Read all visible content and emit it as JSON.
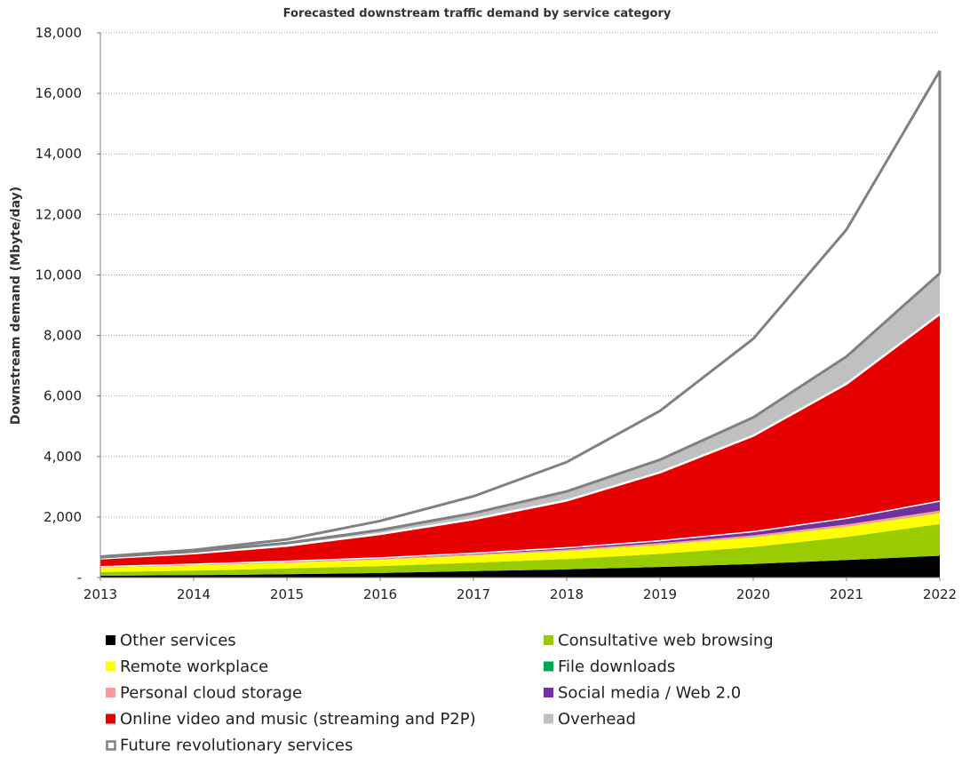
{
  "chart_data": {
    "type": "area",
    "stacked": true,
    "title": "Forecasted downstream traffic demand by service category",
    "xlabel": "",
    "ylabel": "Downstream demand (Mbyte/day)",
    "ylim": [
      0,
      18000
    ],
    "y_ticks": [
      0,
      2000,
      4000,
      6000,
      8000,
      10000,
      12000,
      14000,
      16000,
      18000
    ],
    "y_tick_labels": [
      "-",
      "2,000",
      "4,000",
      "6,000",
      "8,000",
      "10,000",
      "12,000",
      "14,000",
      "16,000",
      "18,000"
    ],
    "x": [
      "2013",
      "2014",
      "2015",
      "2016",
      "2017",
      "2018",
      "2019",
      "2020",
      "2021",
      "2022"
    ],
    "grid": "horizontal",
    "legend_position": "bottom",
    "series": [
      {
        "name": "Other services",
        "color": "#000000",
        "values": [
          60,
          80,
          110,
          150,
          210,
          270,
          350,
          450,
          580,
          720
        ]
      },
      {
        "name": "Consultative web browsing",
        "color": "#99cc00",
        "values": [
          120,
          150,
          190,
          230,
          280,
          340,
          430,
          560,
          760,
          1050
        ]
      },
      {
        "name": "Remote workplace",
        "color": "#ffff00",
        "values": [
          150,
          170,
          190,
          210,
          240,
          270,
          300,
          320,
          340,
          360
        ]
      },
      {
        "name": "File downloads",
        "color": "#00a651",
        "values": [
          5,
          5,
          5,
          5,
          5,
          5,
          5,
          5,
          5,
          5
        ]
      },
      {
        "name": "Personal cloud storage",
        "color": "#ff9999",
        "values": [
          10,
          15,
          20,
          25,
          30,
          40,
          50,
          60,
          70,
          80
        ]
      },
      {
        "name": "Social media / Web 2.0",
        "color": "#7030a0",
        "values": [
          15,
          20,
          25,
          30,
          40,
          60,
          80,
          120,
          200,
          310
        ]
      },
      {
        "name": "Online video and music (streaming and P2P)",
        "color": "#e60000",
        "values": [
          270,
          360,
          510,
          790,
          1120,
          1560,
          2260,
          3170,
          4450,
          6180
        ]
      },
      {
        "name": "Overhead",
        "color": "#c0c0c0",
        "values": [
          40,
          60,
          90,
          130,
          200,
          300,
          420,
          610,
          900,
          1350
        ]
      },
      {
        "name": "Future revolutionary services",
        "color": "#ffffff",
        "border": "#808080",
        "values": [
          20,
          50,
          120,
          300,
          560,
          970,
          1615,
          2595,
          4195,
          6695
        ]
      }
    ]
  },
  "legend": {
    "items": [
      {
        "label": "Other services",
        "color": "#000000"
      },
      {
        "label": "Consultative web browsing",
        "color": "#99cc00"
      },
      {
        "label": "Remote workplace",
        "color": "#ffff00"
      },
      {
        "label": "File downloads",
        "color": "#00a651"
      },
      {
        "label": "Personal cloud storage",
        "color": "#ff9999"
      },
      {
        "label": "Social media / Web 2.0",
        "color": "#7030a0"
      },
      {
        "label": "Online video and music (streaming and P2P)",
        "color": "#e60000"
      },
      {
        "label": "Overhead",
        "color": "#c0c0c0"
      },
      {
        "label": "Future revolutionary services",
        "color": "#ffffff",
        "border": "#808080"
      }
    ]
  }
}
